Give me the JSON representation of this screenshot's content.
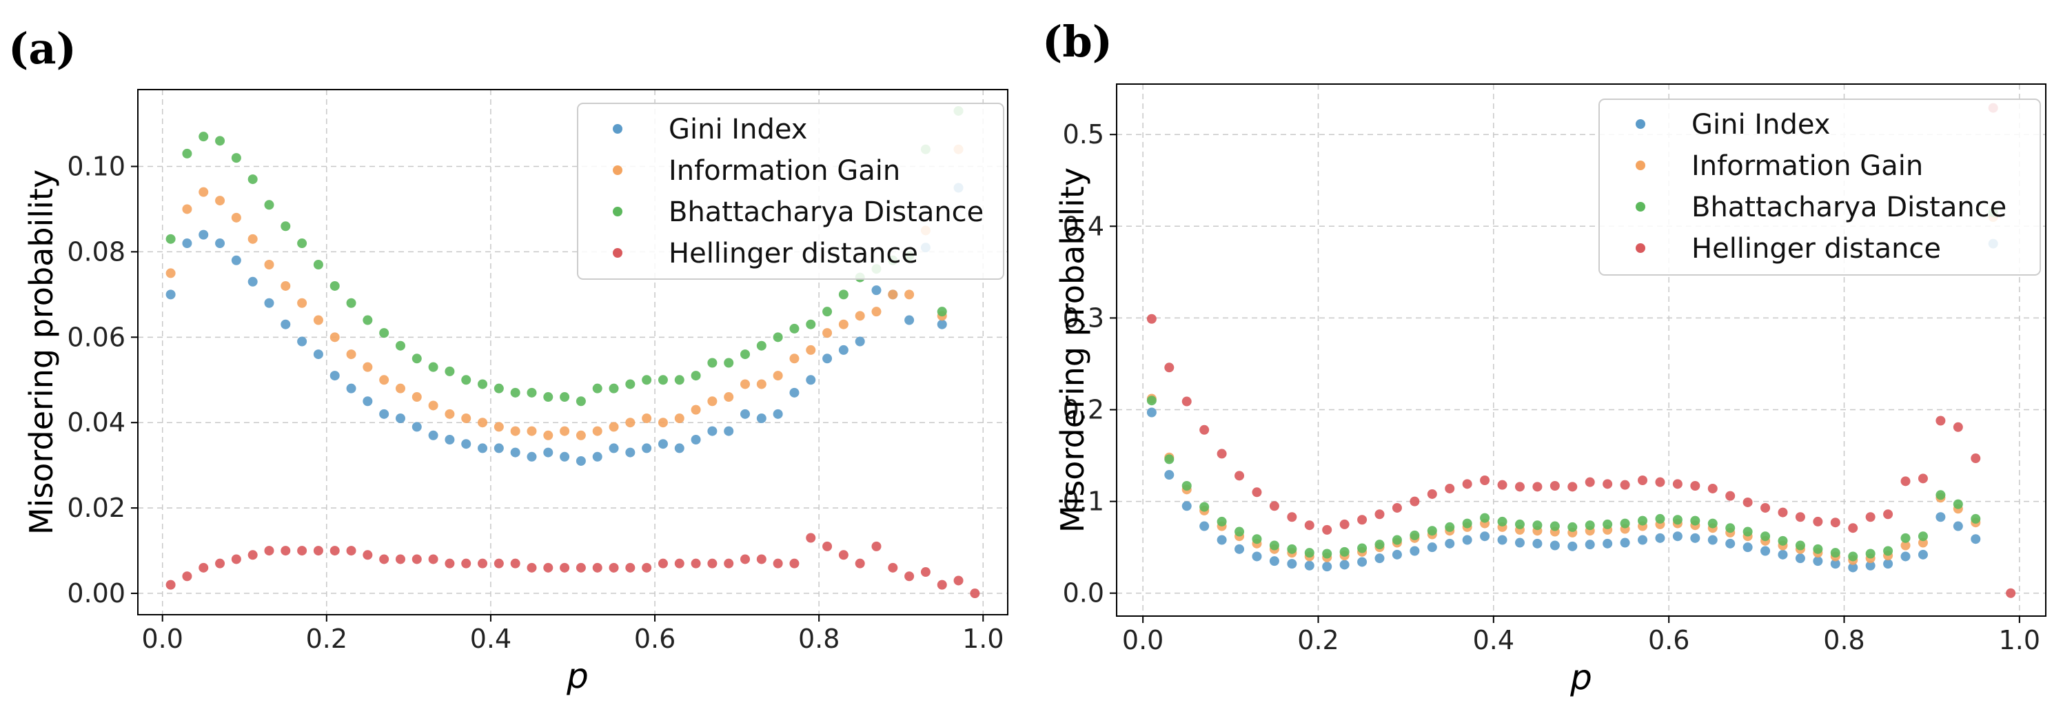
{
  "colors": {
    "gini": "#5b9bc9",
    "info": "#f4a460",
    "bhatt": "#5cb85c",
    "hell": "#d9595c"
  },
  "chart_data": [
    {
      "panel_label": "(a)",
      "type": "scatter",
      "xlabel": "p",
      "ylabel": "Misordering probability",
      "xlim": [
        -0.03,
        1.03
      ],
      "ylim": [
        -0.005,
        0.118
      ],
      "xticks": [
        0.0,
        0.2,
        0.4,
        0.6,
        0.8,
        1.0
      ],
      "xtick_labels": [
        "0.0",
        "0.2",
        "0.4",
        "0.6",
        "0.8",
        "1.0"
      ],
      "yticks": [
        0.0,
        0.02,
        0.04,
        0.06,
        0.08,
        0.1
      ],
      "ytick_labels": [
        "0.00",
        "0.02",
        "0.04",
        "0.06",
        "0.08",
        "0.10"
      ],
      "grid": true,
      "legend_position": "top-right",
      "x": [
        0.01,
        0.03,
        0.05,
        0.07,
        0.09,
        0.11,
        0.13,
        0.15,
        0.17,
        0.19,
        0.21,
        0.23,
        0.25,
        0.27,
        0.29,
        0.31,
        0.33,
        0.35,
        0.37,
        0.39,
        0.41,
        0.43,
        0.45,
        0.47,
        0.49,
        0.51,
        0.53,
        0.55,
        0.57,
        0.59,
        0.61,
        0.63,
        0.65,
        0.67,
        0.69,
        0.71,
        0.73,
        0.75,
        0.77,
        0.79,
        0.81,
        0.83,
        0.85,
        0.87,
        0.89,
        0.91,
        0.93,
        0.95,
        0.97,
        0.99
      ],
      "series": [
        {
          "name": "Gini Index",
          "color_key": "gini",
          "values": [
            0.07,
            0.082,
            0.084,
            0.082,
            0.078,
            0.073,
            0.068,
            0.063,
            0.059,
            0.056,
            0.051,
            0.048,
            0.045,
            0.042,
            0.041,
            0.039,
            0.037,
            0.036,
            0.035,
            0.034,
            0.034,
            0.033,
            0.032,
            0.033,
            0.032,
            0.031,
            0.032,
            0.034,
            0.033,
            0.034,
            0.035,
            0.034,
            0.036,
            0.038,
            0.038,
            0.042,
            0.041,
            0.042,
            0.047,
            0.05,
            0.055,
            0.057,
            0.059,
            0.071,
            0.07,
            0.064,
            0.081,
            0.063,
            0.095,
            null
          ]
        },
        {
          "name": "Information Gain",
          "color_key": "info",
          "values": [
            0.075,
            0.09,
            0.094,
            0.092,
            0.088,
            0.083,
            0.077,
            0.072,
            0.068,
            0.064,
            0.06,
            0.056,
            0.053,
            0.05,
            0.048,
            0.046,
            0.044,
            0.042,
            0.041,
            0.04,
            0.039,
            0.038,
            0.038,
            0.037,
            0.038,
            0.037,
            0.038,
            0.039,
            0.04,
            0.041,
            0.04,
            0.041,
            0.043,
            0.045,
            0.046,
            0.049,
            0.049,
            0.051,
            0.055,
            0.057,
            0.061,
            0.063,
            0.065,
            0.066,
            0.07,
            0.07,
            0.085,
            0.065,
            0.104,
            null
          ]
        },
        {
          "name": "Bhattacharya Distance",
          "color_key": "bhatt",
          "values": [
            0.083,
            0.103,
            0.107,
            0.106,
            0.102,
            0.097,
            0.091,
            0.086,
            0.082,
            0.077,
            0.072,
            0.068,
            0.064,
            0.061,
            0.058,
            0.055,
            0.053,
            0.052,
            0.05,
            0.049,
            0.048,
            0.047,
            0.047,
            0.046,
            0.046,
            0.045,
            0.048,
            0.048,
            0.049,
            0.05,
            0.05,
            0.05,
            0.051,
            0.054,
            0.054,
            0.056,
            0.058,
            0.06,
            0.062,
            0.063,
            0.066,
            0.07,
            0.074,
            0.076,
            0.078,
            0.079,
            0.104,
            0.066,
            0.113,
            null
          ]
        },
        {
          "name": "Hellinger distance",
          "color_key": "hell",
          "values": [
            0.002,
            0.004,
            0.006,
            0.007,
            0.008,
            0.009,
            0.01,
            0.01,
            0.01,
            0.01,
            0.01,
            0.01,
            0.009,
            0.008,
            0.008,
            0.008,
            0.008,
            0.007,
            0.007,
            0.007,
            0.007,
            0.007,
            0.006,
            0.006,
            0.006,
            0.006,
            0.006,
            0.006,
            0.006,
            0.006,
            0.007,
            0.007,
            0.007,
            0.007,
            0.007,
            0.008,
            0.008,
            0.007,
            0.007,
            0.013,
            0.011,
            0.009,
            0.007,
            0.011,
            0.006,
            0.004,
            0.005,
            0.002,
            0.003,
            0.0
          ]
        }
      ]
    },
    {
      "panel_label": "(b)",
      "type": "scatter",
      "xlabel": "p",
      "ylabel": "Misordering probability",
      "xlim": [
        -0.03,
        1.03
      ],
      "ylim": [
        -0.025,
        0.555
      ],
      "xticks": [
        0.0,
        0.2,
        0.4,
        0.6,
        0.8,
        1.0
      ],
      "xtick_labels": [
        "0.0",
        "0.2",
        "0.4",
        "0.6",
        "0.8",
        "1.0"
      ],
      "yticks": [
        0.0,
        0.1,
        0.2,
        0.3,
        0.4,
        0.5
      ],
      "ytick_labels": [
        "0.0",
        "0.1",
        "0.2",
        "0.3",
        "0.4",
        "0.5"
      ],
      "grid": true,
      "legend_position": "top-right",
      "x": [
        0.01,
        0.03,
        0.05,
        0.07,
        0.09,
        0.11,
        0.13,
        0.15,
        0.17,
        0.19,
        0.21,
        0.23,
        0.25,
        0.27,
        0.29,
        0.31,
        0.33,
        0.35,
        0.37,
        0.39,
        0.41,
        0.43,
        0.45,
        0.47,
        0.49,
        0.51,
        0.53,
        0.55,
        0.57,
        0.59,
        0.61,
        0.63,
        0.65,
        0.67,
        0.69,
        0.71,
        0.73,
        0.75,
        0.77,
        0.79,
        0.81,
        0.83,
        0.85,
        0.87,
        0.89,
        0.91,
        0.93,
        0.95,
        0.97,
        0.99
      ],
      "series": [
        {
          "name": "Gini Index",
          "color_key": "gini",
          "values": [
            0.197,
            0.129,
            0.095,
            0.073,
            0.058,
            0.048,
            0.04,
            0.035,
            0.032,
            0.03,
            0.029,
            0.031,
            0.034,
            0.038,
            0.042,
            0.046,
            0.05,
            0.054,
            0.058,
            0.062,
            0.058,
            0.055,
            0.054,
            0.052,
            0.051,
            0.053,
            0.054,
            0.055,
            0.058,
            0.06,
            0.062,
            0.06,
            0.058,
            0.054,
            0.05,
            0.046,
            0.042,
            0.038,
            0.035,
            0.032,
            0.028,
            0.03,
            0.032,
            0.04,
            0.042,
            0.083,
            0.073,
            0.059,
            0.381,
            null
          ]
        },
        {
          "name": "Information Gain",
          "color_key": "info",
          "values": [
            0.212,
            0.148,
            0.113,
            0.09,
            0.073,
            0.062,
            0.054,
            0.048,
            0.044,
            0.04,
            0.039,
            0.041,
            0.045,
            0.05,
            0.055,
            0.06,
            0.064,
            0.068,
            0.072,
            0.076,
            0.072,
            0.069,
            0.068,
            0.067,
            0.066,
            0.068,
            0.069,
            0.07,
            0.073,
            0.075,
            0.076,
            0.074,
            0.071,
            0.066,
            0.062,
            0.057,
            0.052,
            0.048,
            0.044,
            0.04,
            0.036,
            0.038,
            0.041,
            0.052,
            0.055,
            0.104,
            0.092,
            0.077,
            0.41,
            null
          ]
        },
        {
          "name": "Bhattacharya Distance",
          "color_key": "bhatt",
          "values": [
            0.21,
            0.146,
            0.117,
            0.094,
            0.078,
            0.067,
            0.059,
            0.052,
            0.048,
            0.044,
            0.043,
            0.045,
            0.049,
            0.053,
            0.058,
            0.063,
            0.068,
            0.072,
            0.076,
            0.082,
            0.078,
            0.075,
            0.074,
            0.073,
            0.072,
            0.074,
            0.075,
            0.076,
            0.079,
            0.081,
            0.08,
            0.079,
            0.076,
            0.071,
            0.067,
            0.062,
            0.057,
            0.052,
            0.048,
            0.044,
            0.04,
            0.043,
            0.046,
            0.06,
            0.062,
            0.107,
            0.097,
            0.081,
            0.415,
            null
          ]
        },
        {
          "name": "Hellinger distance",
          "color_key": "hell",
          "values": [
            0.299,
            0.246,
            0.209,
            0.178,
            0.152,
            0.128,
            0.11,
            0.095,
            0.083,
            0.074,
            0.069,
            0.075,
            0.08,
            0.086,
            0.093,
            0.1,
            0.108,
            0.114,
            0.119,
            0.123,
            0.118,
            0.116,
            0.116,
            0.117,
            0.116,
            0.121,
            0.119,
            0.118,
            0.123,
            0.121,
            0.119,
            0.117,
            0.114,
            0.106,
            0.099,
            0.093,
            0.088,
            0.083,
            0.078,
            0.077,
            0.071,
            0.083,
            0.086,
            0.122,
            0.125,
            0.188,
            0.181,
            0.147,
            0.529,
            0.0
          ]
        }
      ]
    }
  ]
}
